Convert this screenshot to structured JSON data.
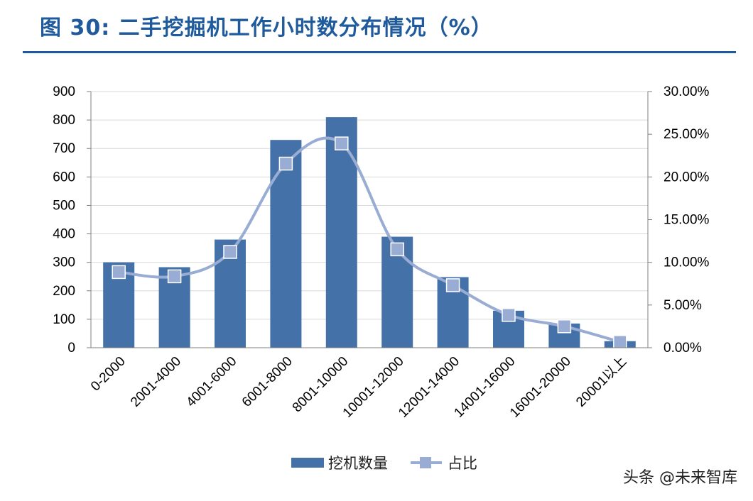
{
  "title": "图 30: 二手挖掘机工作小时数分布情况（%）",
  "watermark": "头条 @未来智库",
  "colors": {
    "title": "#1f5b9c",
    "bar": "#4472a8",
    "line": "#98acd4",
    "grid": "#d9d9d9"
  },
  "chart_data": {
    "type": "bar",
    "categories": [
      "0-2000",
      "2001-4000",
      "4001-6000",
      "6001-8000",
      "8001-10000",
      "10001-12000",
      "12001-14000",
      "14001-16000",
      "16001-20000",
      "20001以上"
    ],
    "series": [
      {
        "name": "挖机数量",
        "type": "bar",
        "axis": "left",
        "values": [
          300,
          283,
          380,
          730,
          810,
          390,
          248,
          130,
          85,
          23
        ]
      },
      {
        "name": "占比",
        "type": "line",
        "axis": "right",
        "smooth": true,
        "values": [
          0.0886,
          0.0836,
          0.1122,
          0.2156,
          0.2392,
          0.1152,
          0.0732,
          0.0384,
          0.0251,
          0.0068
        ]
      }
    ],
    "ylim": [
      0,
      900
    ],
    "yticks": [
      "0",
      "100",
      "200",
      "300",
      "400",
      "500",
      "600",
      "700",
      "800",
      "900"
    ],
    "y2lim": [
      0,
      0.3
    ],
    "y2ticks": [
      "0.00%",
      "5.00%",
      "10.00%",
      "15.00%",
      "20.00%",
      "25.00%",
      "30.00%"
    ],
    "grid": true,
    "legend_position": "bottom"
  }
}
